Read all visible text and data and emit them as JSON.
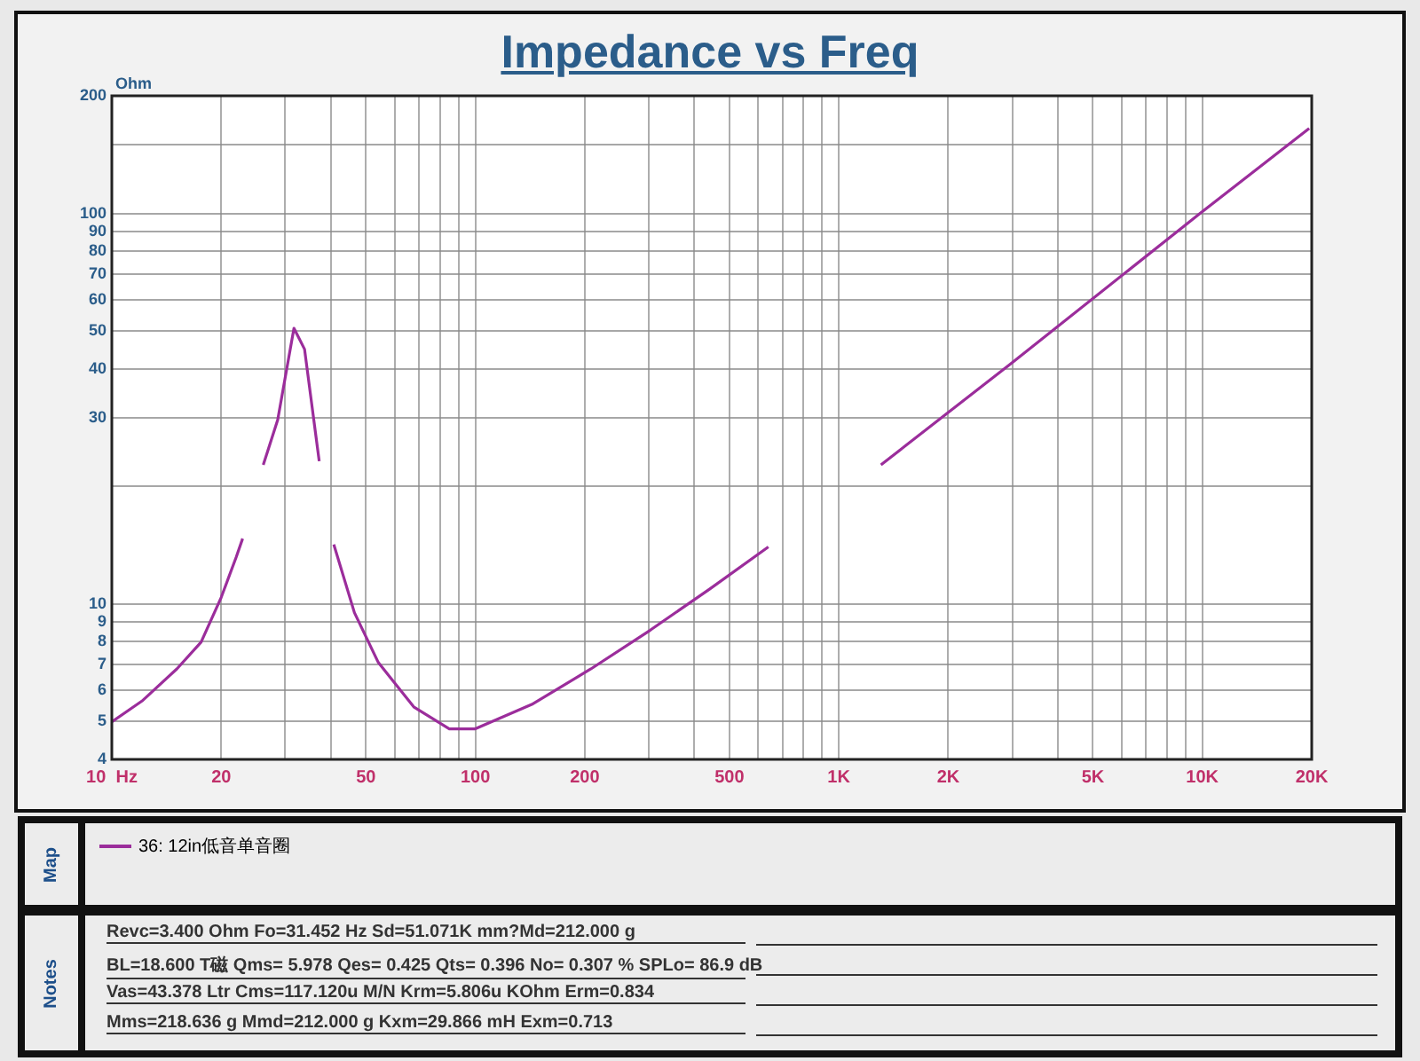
{
  "chart_data": {
    "type": "line",
    "title": "Impedance vs Freq",
    "ylabel": "Ohm",
    "legend_title": "Map",
    "legend": "bottom",
    "log": "xy",
    "grid": true,
    "marker": "none",
    "line_style": "solid",
    "xlim": [
      10,
      20000
    ],
    "ylim": [
      4,
      200
    ],
    "xticks": [
      {
        "value": 10,
        "label": "10  Hz"
      },
      20,
      {
        "value": 30,
        "label": null
      },
      {
        "value": 40,
        "label": null
      },
      50,
      {
        "value": 60,
        "label": null
      },
      {
        "value": 70,
        "label": null
      },
      {
        "value": 80,
        "label": null
      },
      {
        "value": 90,
        "label": null
      },
      100,
      200,
      {
        "value": 300,
        "label": null
      },
      {
        "value": 400,
        "label": null
      },
      500,
      {
        "value": 600,
        "label": null
      },
      {
        "value": 700,
        "label": null
      },
      {
        "value": 800,
        "label": null
      },
      {
        "value": 900,
        "label": null
      },
      {
        "value": 1000,
        "label": "1K"
      },
      {
        "value": 2000,
        "label": "2K"
      },
      {
        "value": 3000,
        "label": null
      },
      {
        "value": 4000,
        "label": null
      },
      {
        "value": 5000,
        "label": "5K"
      },
      {
        "value": 6000,
        "label": null
      },
      {
        "value": 7000,
        "label": null
      },
      {
        "value": 8000,
        "label": null
      },
      {
        "value": 9000,
        "label": null
      },
      {
        "value": 10000,
        "label": "10K"
      },
      {
        "value": 20000,
        "label": "20K"
      }
    ],
    "yticks": [
      4,
      5,
      6,
      7,
      8,
      9,
      10,
      {
        "value": 20,
        "label": null
      },
      30,
      40,
      50,
      60,
      70,
      80,
      90,
      100,
      {
        "value": 150,
        "label": null
      },
      200
    ],
    "series": [
      {
        "name": "36: 12in低音单音圈",
        "color": "#9b2d9b",
        "x": [
          10,
          12.1,
          15.1,
          17.6,
          20,
          22,
          22.9,
          25,
          26.1,
          28.6,
          31.7,
          33.9,
          37.2,
          39,
          40.8,
          46.5,
          54.1,
          67.7,
          84.8,
          100,
          143,
          208,
          303,
          440,
          640,
          900,
          1306,
          2973,
          9860,
          19680
        ],
        "values": [
          4.99,
          5.64,
          6.82,
          7.98,
          10.4,
          13.2,
          14.7,
          null,
          22.7,
          29.6,
          50.8,
          44.9,
          23.2,
          null,
          14.2,
          9.5,
          7.08,
          5.45,
          4.79,
          4.79,
          5.53,
          6.82,
          8.57,
          10.9,
          14.0,
          null,
          22.7,
          41.2,
          100,
          165
        ]
      }
    ],
    "annotations": [
      "Notes",
      "Revc=3.400 Ohm  Fo=31.452 Hz  Sd=51.071K mm?Md=212.000 g",
      "BL=18.600 T磁  Qms= 5.978  Qes= 0.425  Qts= 0.396  No= 0.307 %  SPLo= 86.9 dB",
      "Vas=43.378 Ltr  Cms=117.120u M/N  Krm=5.806u KOhm  Erm=0.834",
      "Mms=218.636 g  Mmd=212.000 g  Kxm=29.866 mH  Exm=0.713"
    ]
  }
}
